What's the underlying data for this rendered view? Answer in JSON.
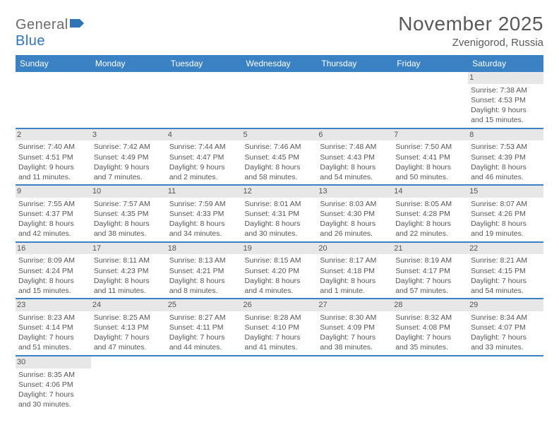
{
  "brand": {
    "part1": "General",
    "part2": "Blue"
  },
  "title": "November 2025",
  "location": "Zvenigorod, Russia",
  "colors": {
    "header_bg": "#3b82c4",
    "header_text": "#ffffff",
    "daynum_bg": "#e7e7e7",
    "row_divider": "#3b82c4",
    "body_text": "#555555",
    "brand_gray": "#6a6a6a",
    "brand_blue": "#2f75b5",
    "page_bg": "#ffffff"
  },
  "typography": {
    "title_fontsize": 28,
    "location_fontsize": 15,
    "weekday_fontsize": 12,
    "cell_fontsize": 10.5,
    "daynum_fontsize": 11,
    "logo_fontsize": 20
  },
  "weekdays": [
    "Sunday",
    "Monday",
    "Tuesday",
    "Wednesday",
    "Thursday",
    "Friday",
    "Saturday"
  ],
  "weeks": [
    [
      null,
      null,
      null,
      null,
      null,
      null,
      {
        "n": "1",
        "sunrise": "Sunrise: 7:38 AM",
        "sunset": "Sunset: 4:53 PM",
        "d1": "Daylight: 9 hours",
        "d2": "and 15 minutes."
      }
    ],
    [
      {
        "n": "2",
        "sunrise": "Sunrise: 7:40 AM",
        "sunset": "Sunset: 4:51 PM",
        "d1": "Daylight: 9 hours",
        "d2": "and 11 minutes."
      },
      {
        "n": "3",
        "sunrise": "Sunrise: 7:42 AM",
        "sunset": "Sunset: 4:49 PM",
        "d1": "Daylight: 9 hours",
        "d2": "and 7 minutes."
      },
      {
        "n": "4",
        "sunrise": "Sunrise: 7:44 AM",
        "sunset": "Sunset: 4:47 PM",
        "d1": "Daylight: 9 hours",
        "d2": "and 2 minutes."
      },
      {
        "n": "5",
        "sunrise": "Sunrise: 7:46 AM",
        "sunset": "Sunset: 4:45 PM",
        "d1": "Daylight: 8 hours",
        "d2": "and 58 minutes."
      },
      {
        "n": "6",
        "sunrise": "Sunrise: 7:48 AM",
        "sunset": "Sunset: 4:43 PM",
        "d1": "Daylight: 8 hours",
        "d2": "and 54 minutes."
      },
      {
        "n": "7",
        "sunrise": "Sunrise: 7:50 AM",
        "sunset": "Sunset: 4:41 PM",
        "d1": "Daylight: 8 hours",
        "d2": "and 50 minutes."
      },
      {
        "n": "8",
        "sunrise": "Sunrise: 7:53 AM",
        "sunset": "Sunset: 4:39 PM",
        "d1": "Daylight: 8 hours",
        "d2": "and 46 minutes."
      }
    ],
    [
      {
        "n": "9",
        "sunrise": "Sunrise: 7:55 AM",
        "sunset": "Sunset: 4:37 PM",
        "d1": "Daylight: 8 hours",
        "d2": "and 42 minutes."
      },
      {
        "n": "10",
        "sunrise": "Sunrise: 7:57 AM",
        "sunset": "Sunset: 4:35 PM",
        "d1": "Daylight: 8 hours",
        "d2": "and 38 minutes."
      },
      {
        "n": "11",
        "sunrise": "Sunrise: 7:59 AM",
        "sunset": "Sunset: 4:33 PM",
        "d1": "Daylight: 8 hours",
        "d2": "and 34 minutes."
      },
      {
        "n": "12",
        "sunrise": "Sunrise: 8:01 AM",
        "sunset": "Sunset: 4:31 PM",
        "d1": "Daylight: 8 hours",
        "d2": "and 30 minutes."
      },
      {
        "n": "13",
        "sunrise": "Sunrise: 8:03 AM",
        "sunset": "Sunset: 4:30 PM",
        "d1": "Daylight: 8 hours",
        "d2": "and 26 minutes."
      },
      {
        "n": "14",
        "sunrise": "Sunrise: 8:05 AM",
        "sunset": "Sunset: 4:28 PM",
        "d1": "Daylight: 8 hours",
        "d2": "and 22 minutes."
      },
      {
        "n": "15",
        "sunrise": "Sunrise: 8:07 AM",
        "sunset": "Sunset: 4:26 PM",
        "d1": "Daylight: 8 hours",
        "d2": "and 19 minutes."
      }
    ],
    [
      {
        "n": "16",
        "sunrise": "Sunrise: 8:09 AM",
        "sunset": "Sunset: 4:24 PM",
        "d1": "Daylight: 8 hours",
        "d2": "and 15 minutes."
      },
      {
        "n": "17",
        "sunrise": "Sunrise: 8:11 AM",
        "sunset": "Sunset: 4:23 PM",
        "d1": "Daylight: 8 hours",
        "d2": "and 11 minutes."
      },
      {
        "n": "18",
        "sunrise": "Sunrise: 8:13 AM",
        "sunset": "Sunset: 4:21 PM",
        "d1": "Daylight: 8 hours",
        "d2": "and 8 minutes."
      },
      {
        "n": "19",
        "sunrise": "Sunrise: 8:15 AM",
        "sunset": "Sunset: 4:20 PM",
        "d1": "Daylight: 8 hours",
        "d2": "and 4 minutes."
      },
      {
        "n": "20",
        "sunrise": "Sunrise: 8:17 AM",
        "sunset": "Sunset: 4:18 PM",
        "d1": "Daylight: 8 hours",
        "d2": "and 1 minute."
      },
      {
        "n": "21",
        "sunrise": "Sunrise: 8:19 AM",
        "sunset": "Sunset: 4:17 PM",
        "d1": "Daylight: 7 hours",
        "d2": "and 57 minutes."
      },
      {
        "n": "22",
        "sunrise": "Sunrise: 8:21 AM",
        "sunset": "Sunset: 4:15 PM",
        "d1": "Daylight: 7 hours",
        "d2": "and 54 minutes."
      }
    ],
    [
      {
        "n": "23",
        "sunrise": "Sunrise: 8:23 AM",
        "sunset": "Sunset: 4:14 PM",
        "d1": "Daylight: 7 hours",
        "d2": "and 51 minutes."
      },
      {
        "n": "24",
        "sunrise": "Sunrise: 8:25 AM",
        "sunset": "Sunset: 4:13 PM",
        "d1": "Daylight: 7 hours",
        "d2": "and 47 minutes."
      },
      {
        "n": "25",
        "sunrise": "Sunrise: 8:27 AM",
        "sunset": "Sunset: 4:11 PM",
        "d1": "Daylight: 7 hours",
        "d2": "and 44 minutes."
      },
      {
        "n": "26",
        "sunrise": "Sunrise: 8:28 AM",
        "sunset": "Sunset: 4:10 PM",
        "d1": "Daylight: 7 hours",
        "d2": "and 41 minutes."
      },
      {
        "n": "27",
        "sunrise": "Sunrise: 8:30 AM",
        "sunset": "Sunset: 4:09 PM",
        "d1": "Daylight: 7 hours",
        "d2": "and 38 minutes."
      },
      {
        "n": "28",
        "sunrise": "Sunrise: 8:32 AM",
        "sunset": "Sunset: 4:08 PM",
        "d1": "Daylight: 7 hours",
        "d2": "and 35 minutes."
      },
      {
        "n": "29",
        "sunrise": "Sunrise: 8:34 AM",
        "sunset": "Sunset: 4:07 PM",
        "d1": "Daylight: 7 hours",
        "d2": "and 33 minutes."
      }
    ],
    [
      {
        "n": "30",
        "sunrise": "Sunrise: 8:35 AM",
        "sunset": "Sunset: 4:06 PM",
        "d1": "Daylight: 7 hours",
        "d2": "and 30 minutes."
      },
      null,
      null,
      null,
      null,
      null,
      null
    ]
  ]
}
